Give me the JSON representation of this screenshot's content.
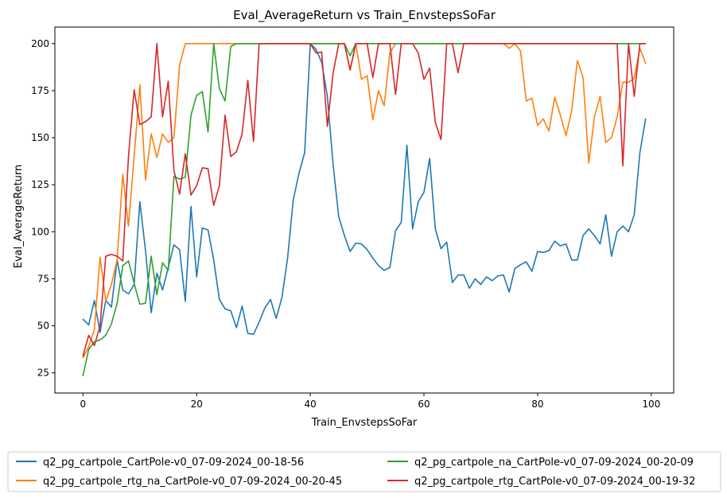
{
  "chart_data": {
    "type": "line",
    "title": "Eval_AverageReturn vs Train_EnvstepsSoFar",
    "xlabel": "Train_EnvstepsSoFar",
    "ylabel": "Eval_AverageReturn",
    "xlim": [
      -4.95,
      103.95
    ],
    "ylim": [
      14.3,
      208.8
    ],
    "xticks": [
      0,
      20,
      40,
      60,
      80,
      100
    ],
    "yticks": [
      25,
      50,
      75,
      100,
      125,
      150,
      175,
      200
    ],
    "grid": false,
    "legend_position": "below-center",
    "series": [
      {
        "name": "q2_pg_cartpole_CartPole-v0_07-09-2024_00-18-56",
        "color": "#1f77b4",
        "values": [
          53.5,
          50.5,
          63.5,
          46.5,
          63.5,
          60,
          85,
          69,
          67,
          72,
          116,
          90,
          57,
          78,
          69,
          81,
          93,
          90.5,
          63,
          113.5,
          76,
          102,
          101,
          85,
          64,
          59,
          58,
          49,
          60.5,
          46,
          45.5,
          52,
          59.5,
          64,
          54,
          65,
          86,
          117,
          131,
          142,
          200,
          197,
          190,
          172,
          136,
          108,
          98,
          89.5,
          94,
          93.5,
          90.5,
          86,
          82,
          79.5,
          81,
          100.5,
          105,
          146,
          101.5,
          116,
          121,
          139,
          101.5,
          91,
          94.5,
          73,
          77,
          77,
          70,
          75,
          72,
          76,
          74,
          76.5,
          77,
          68,
          80.5,
          82.5,
          84,
          79,
          89.5,
          89,
          90,
          95,
          92.5,
          93.5,
          85,
          85,
          98,
          101.5,
          98,
          93.5,
          109,
          87,
          100,
          103,
          100,
          109,
          142,
          160
        ]
      },
      {
        "name": "q2_pg_cartpole_rtg_na_CartPole-v0_07-09-2024_00-20-45",
        "color": "#ff7f0e",
        "values": [
          33,
          39,
          48,
          86.5,
          63,
          72,
          85,
          130.5,
          103,
          140,
          178,
          127.5,
          152,
          139.5,
          152,
          147.5,
          150,
          188.5,
          200,
          200,
          200,
          200,
          200,
          200,
          200,
          200,
          200,
          200,
          200,
          200,
          200,
          200,
          200,
          200,
          200,
          200,
          200,
          200,
          200,
          200,
          200,
          200,
          200,
          200,
          200,
          200,
          200,
          186,
          200,
          181,
          183,
          159.5,
          175,
          167,
          195,
          200,
          200,
          200,
          200,
          200,
          200,
          200,
          200,
          200,
          200,
          200,
          200,
          200,
          200,
          200,
          200,
          200,
          200,
          200,
          200,
          197.5,
          200,
          196,
          169.5,
          171,
          156.5,
          160,
          153.5,
          171.5,
          162,
          151,
          164.5,
          191,
          182,
          136.5,
          161,
          172,
          147.5,
          150,
          161,
          179.5,
          179.5,
          181.5,
          197.5,
          189.5
        ]
      },
      {
        "name": "q2_pg_cartpole_na_CartPole-v0_07-09-2024_00-20-09",
        "color": "#2ca02c",
        "values": [
          23.5,
          37.5,
          41.5,
          42.5,
          45,
          51,
          62,
          82,
          84.5,
          72.5,
          61.5,
          62,
          87,
          66.5,
          83.5,
          79.5,
          129.5,
          128,
          129,
          162,
          172.5,
          174.5,
          153,
          200,
          176,
          169.5,
          198.5,
          200,
          200,
          200,
          200,
          200,
          200,
          200,
          200,
          200,
          200,
          200,
          200,
          200,
          200,
          200,
          200,
          200,
          200,
          200,
          200,
          193.5,
          200,
          200,
          200,
          200,
          200,
          200,
          200,
          200,
          200,
          200,
          200,
          200,
          200,
          200,
          200,
          200,
          200,
          200,
          200,
          200,
          200,
          200,
          200,
          200,
          200,
          200,
          200,
          200,
          200,
          200,
          200,
          200,
          200,
          200,
          200,
          200,
          200,
          200,
          200,
          200,
          200,
          200,
          200,
          200,
          200,
          200,
          200,
          200,
          200,
          200,
          200,
          200
        ]
      },
      {
        "name": "q2_pg_cartpole_rtg_CartPole-v0_07-09-2024_00-19-32",
        "color": "#d62728",
        "values": [
          34,
          45,
          39.5,
          50,
          87,
          88,
          87,
          84.5,
          140,
          175.5,
          157,
          158.5,
          161,
          200,
          161,
          180,
          132.5,
          120,
          141.5,
          119.5,
          124.5,
          134,
          133.5,
          114,
          124.5,
          162,
          140,
          142.5,
          152,
          180.5,
          148,
          200,
          200,
          200,
          200,
          200,
          200,
          200,
          200,
          200,
          200,
          195,
          195.5,
          156,
          184,
          200,
          200,
          186,
          200,
          200,
          200,
          182,
          200,
          200,
          200,
          173,
          200,
          200,
          200,
          195,
          181,
          187,
          158,
          149,
          200,
          200,
          184.5,
          200,
          200,
          200,
          200,
          200,
          200,
          200,
          200,
          200,
          200,
          200,
          200,
          200,
          200,
          200,
          200,
          200,
          200,
          200,
          200,
          200,
          200,
          200,
          200,
          200,
          200,
          200,
          200,
          135,
          200,
          172,
          200,
          200
        ]
      }
    ]
  }
}
